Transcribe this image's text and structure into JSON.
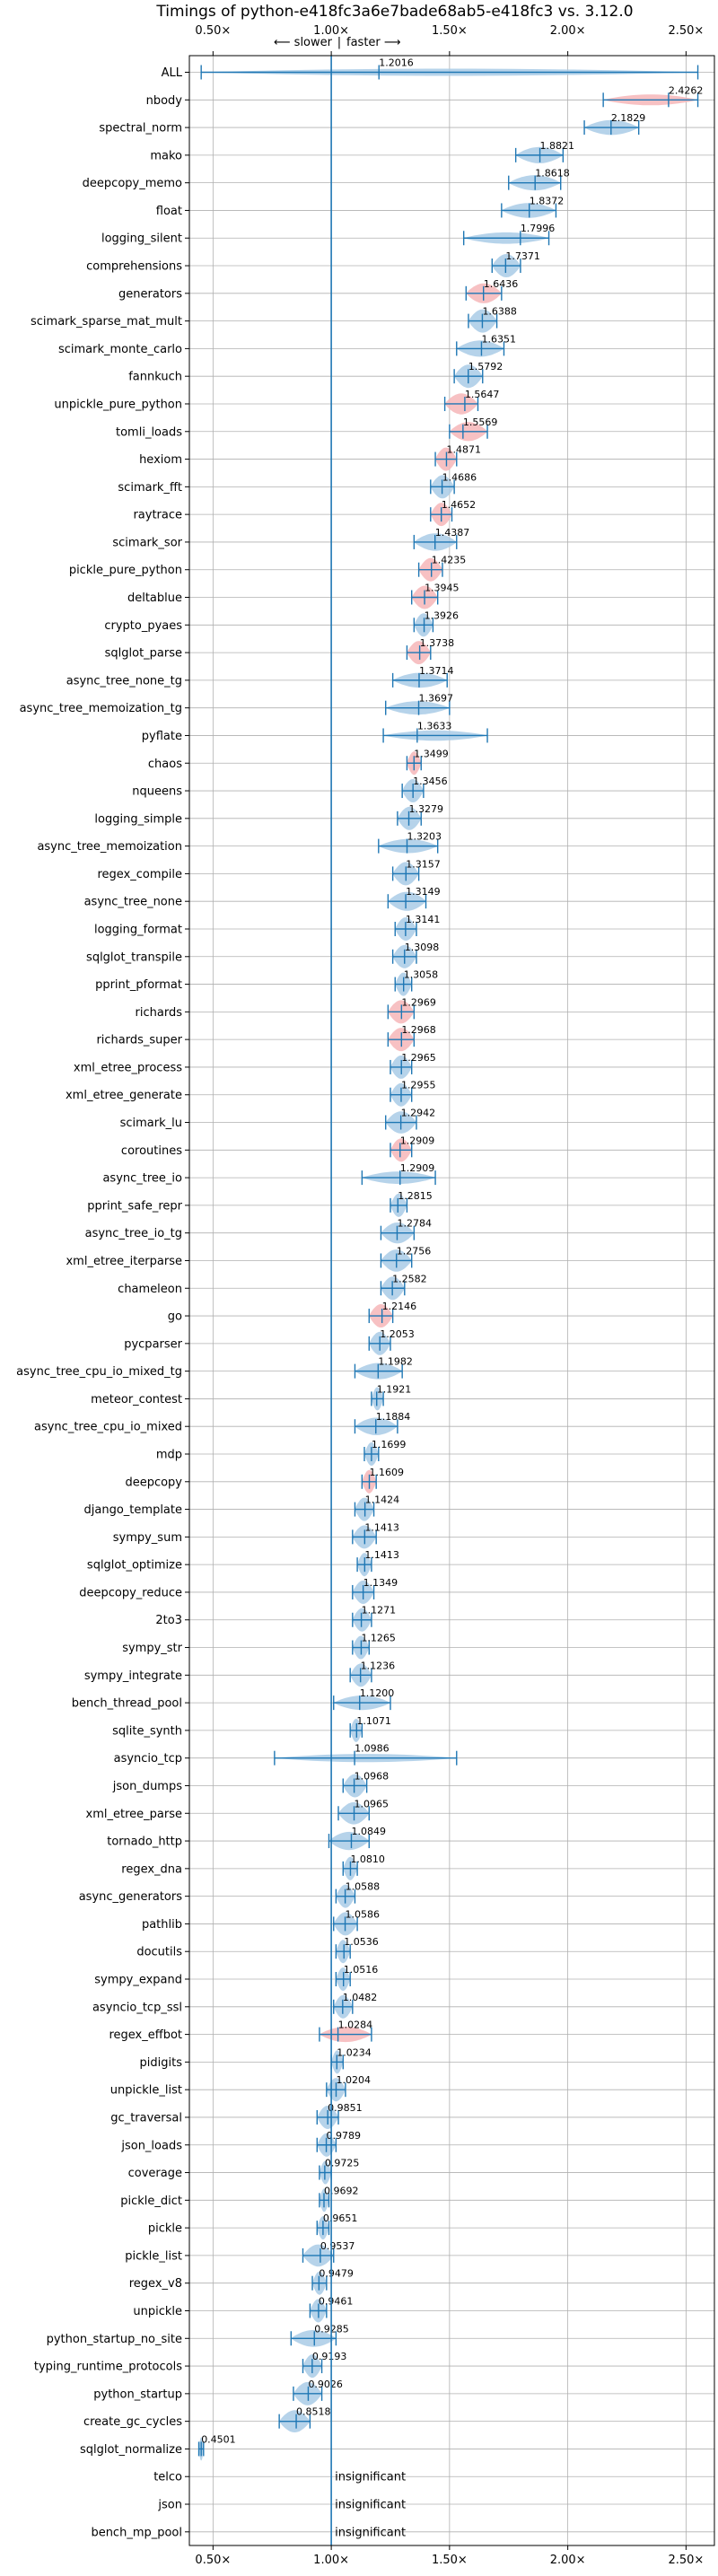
{
  "chart_data": {
    "type": "violin",
    "title": "Timings of python-e418fc3a6e7bade68ab5-e418fc3 vs. 3.12.0",
    "direction_labels": {
      "slower": "⟵ slower",
      "faster": "faster ⟶"
    },
    "x_ticks": [
      0.5,
      1.0,
      1.5,
      2.0,
      2.5
    ],
    "x_tick_labels": [
      "0.50×",
      "1.00×",
      "1.50×",
      "2.00×",
      "2.50×"
    ],
    "xlim": [
      0.4,
      2.62
    ],
    "grid": true,
    "reference_line": 1.0,
    "colors": {
      "faster": "#a9cbe6",
      "slower": "#f6b6b8",
      "error": "#1f77b4",
      "grid": "#b0b0b0"
    },
    "insignificant_label": "insignificant",
    "benchmarks": [
      {
        "name": "ALL",
        "value": 1.2016,
        "lo": 0.45,
        "hi": 2.55,
        "slower": false,
        "insignificant": false
      },
      {
        "name": "nbody",
        "value": 2.4262,
        "lo": 2.15,
        "hi": 2.55,
        "slower": true,
        "insignificant": false
      },
      {
        "name": "spectral_norm",
        "value": 2.1829,
        "lo": 2.07,
        "hi": 2.3,
        "slower": false,
        "insignificant": false
      },
      {
        "name": "mako",
        "value": 1.8821,
        "lo": 1.78,
        "hi": 1.98,
        "slower": false,
        "insignificant": false
      },
      {
        "name": "deepcopy_memo",
        "value": 1.8618,
        "lo": 1.75,
        "hi": 1.97,
        "slower": false,
        "insignificant": false
      },
      {
        "name": "float",
        "value": 1.8372,
        "lo": 1.72,
        "hi": 1.95,
        "slower": false,
        "insignificant": false
      },
      {
        "name": "logging_silent",
        "value": 1.7996,
        "lo": 1.56,
        "hi": 1.92,
        "slower": false,
        "insignificant": false
      },
      {
        "name": "comprehensions",
        "value": 1.7371,
        "lo": 1.68,
        "hi": 1.8,
        "slower": false,
        "insignificant": false
      },
      {
        "name": "generators",
        "value": 1.6436,
        "lo": 1.57,
        "hi": 1.72,
        "slower": true,
        "insignificant": false
      },
      {
        "name": "scimark_sparse_mat_mult",
        "value": 1.6388,
        "lo": 1.58,
        "hi": 1.7,
        "slower": false,
        "insignificant": false
      },
      {
        "name": "scimark_monte_carlo",
        "value": 1.6351,
        "lo": 1.53,
        "hi": 1.73,
        "slower": false,
        "insignificant": false
      },
      {
        "name": "fannkuch",
        "value": 1.5792,
        "lo": 1.52,
        "hi": 1.64,
        "slower": false,
        "insignificant": false
      },
      {
        "name": "unpickle_pure_python",
        "value": 1.5647,
        "lo": 1.48,
        "hi": 1.62,
        "slower": true,
        "insignificant": false
      },
      {
        "name": "tomli_loads",
        "value": 1.5569,
        "lo": 1.5,
        "hi": 1.66,
        "slower": true,
        "insignificant": false
      },
      {
        "name": "hexiom",
        "value": 1.4871,
        "lo": 1.44,
        "hi": 1.53,
        "slower": true,
        "insignificant": false
      },
      {
        "name": "scimark_fft",
        "value": 1.4686,
        "lo": 1.42,
        "hi": 1.52,
        "slower": false,
        "insignificant": false
      },
      {
        "name": "raytrace",
        "value": 1.4652,
        "lo": 1.42,
        "hi": 1.51,
        "slower": true,
        "insignificant": false
      },
      {
        "name": "scimark_sor",
        "value": 1.4387,
        "lo": 1.35,
        "hi": 1.53,
        "slower": false,
        "insignificant": false
      },
      {
        "name": "pickle_pure_python",
        "value": 1.4235,
        "lo": 1.37,
        "hi": 1.47,
        "slower": true,
        "insignificant": false
      },
      {
        "name": "deltablue",
        "value": 1.3945,
        "lo": 1.34,
        "hi": 1.45,
        "slower": true,
        "insignificant": false
      },
      {
        "name": "crypto_pyaes",
        "value": 1.3926,
        "lo": 1.35,
        "hi": 1.43,
        "slower": false,
        "insignificant": false
      },
      {
        "name": "sqlglot_parse",
        "value": 1.3738,
        "lo": 1.32,
        "hi": 1.42,
        "slower": true,
        "insignificant": false
      },
      {
        "name": "async_tree_none_tg",
        "value": 1.3714,
        "lo": 1.26,
        "hi": 1.49,
        "slower": false,
        "insignificant": false
      },
      {
        "name": "async_tree_memoization_tg",
        "value": 1.3697,
        "lo": 1.23,
        "hi": 1.5,
        "slower": false,
        "insignificant": false
      },
      {
        "name": "pyflate",
        "value": 1.3633,
        "lo": 1.22,
        "hi": 1.66,
        "slower": false,
        "insignificant": false
      },
      {
        "name": "chaos",
        "value": 1.3499,
        "lo": 1.32,
        "hi": 1.38,
        "slower": true,
        "insignificant": false
      },
      {
        "name": "nqueens",
        "value": 1.3456,
        "lo": 1.3,
        "hi": 1.39,
        "slower": false,
        "insignificant": false
      },
      {
        "name": "logging_simple",
        "value": 1.3279,
        "lo": 1.28,
        "hi": 1.38,
        "slower": false,
        "insignificant": false
      },
      {
        "name": "async_tree_memoization",
        "value": 1.3203,
        "lo": 1.2,
        "hi": 1.45,
        "slower": false,
        "insignificant": false
      },
      {
        "name": "regex_compile",
        "value": 1.3157,
        "lo": 1.26,
        "hi": 1.37,
        "slower": false,
        "insignificant": false
      },
      {
        "name": "async_tree_none",
        "value": 1.3149,
        "lo": 1.24,
        "hi": 1.4,
        "slower": false,
        "insignificant": false
      },
      {
        "name": "logging_format",
        "value": 1.3141,
        "lo": 1.27,
        "hi": 1.36,
        "slower": false,
        "insignificant": false
      },
      {
        "name": "sqlglot_transpile",
        "value": 1.3098,
        "lo": 1.26,
        "hi": 1.36,
        "slower": false,
        "insignificant": false
      },
      {
        "name": "pprint_pformat",
        "value": 1.3058,
        "lo": 1.27,
        "hi": 1.34,
        "slower": false,
        "insignificant": false
      },
      {
        "name": "richards",
        "value": 1.2969,
        "lo": 1.24,
        "hi": 1.35,
        "slower": true,
        "insignificant": false
      },
      {
        "name": "richards_super",
        "value": 1.2968,
        "lo": 1.24,
        "hi": 1.35,
        "slower": true,
        "insignificant": false
      },
      {
        "name": "xml_etree_process",
        "value": 1.2965,
        "lo": 1.25,
        "hi": 1.34,
        "slower": false,
        "insignificant": false
      },
      {
        "name": "xml_etree_generate",
        "value": 1.2955,
        "lo": 1.25,
        "hi": 1.34,
        "slower": false,
        "insignificant": false
      },
      {
        "name": "scimark_lu",
        "value": 1.2942,
        "lo": 1.23,
        "hi": 1.36,
        "slower": false,
        "insignificant": false
      },
      {
        "name": "coroutines",
        "value": 1.2909,
        "lo": 1.25,
        "hi": 1.34,
        "slower": true,
        "insignificant": false
      },
      {
        "name": "async_tree_io",
        "value": 1.2909,
        "lo": 1.13,
        "hi": 1.44,
        "slower": false,
        "insignificant": false
      },
      {
        "name": "pprint_safe_repr",
        "value": 1.2815,
        "lo": 1.25,
        "hi": 1.32,
        "slower": false,
        "insignificant": false
      },
      {
        "name": "async_tree_io_tg",
        "value": 1.2784,
        "lo": 1.21,
        "hi": 1.35,
        "slower": false,
        "insignificant": false
      },
      {
        "name": "xml_etree_iterparse",
        "value": 1.2756,
        "lo": 1.21,
        "hi": 1.34,
        "slower": false,
        "insignificant": false
      },
      {
        "name": "chameleon",
        "value": 1.2582,
        "lo": 1.21,
        "hi": 1.31,
        "slower": false,
        "insignificant": false
      },
      {
        "name": "go",
        "value": 1.2146,
        "lo": 1.16,
        "hi": 1.26,
        "slower": true,
        "insignificant": false
      },
      {
        "name": "pycparser",
        "value": 1.2053,
        "lo": 1.16,
        "hi": 1.25,
        "slower": false,
        "insignificant": false
      },
      {
        "name": "async_tree_cpu_io_mixed_tg",
        "value": 1.1982,
        "lo": 1.1,
        "hi": 1.3,
        "slower": false,
        "insignificant": false
      },
      {
        "name": "meteor_contest",
        "value": 1.1921,
        "lo": 1.17,
        "hi": 1.22,
        "slower": false,
        "insignificant": false
      },
      {
        "name": "async_tree_cpu_io_mixed",
        "value": 1.1884,
        "lo": 1.1,
        "hi": 1.28,
        "slower": false,
        "insignificant": false
      },
      {
        "name": "mdp",
        "value": 1.1699,
        "lo": 1.14,
        "hi": 1.2,
        "slower": false,
        "insignificant": false
      },
      {
        "name": "deepcopy",
        "value": 1.1609,
        "lo": 1.13,
        "hi": 1.19,
        "slower": true,
        "insignificant": false
      },
      {
        "name": "django_template",
        "value": 1.1424,
        "lo": 1.1,
        "hi": 1.18,
        "slower": false,
        "insignificant": false
      },
      {
        "name": "sympy_sum",
        "value": 1.1413,
        "lo": 1.09,
        "hi": 1.19,
        "slower": false,
        "insignificant": false
      },
      {
        "name": "sqlglot_optimize",
        "value": 1.1413,
        "lo": 1.11,
        "hi": 1.17,
        "slower": false,
        "insignificant": false
      },
      {
        "name": "deepcopy_reduce",
        "value": 1.1349,
        "lo": 1.09,
        "hi": 1.18,
        "slower": false,
        "insignificant": false
      },
      {
        "name": "2to3",
        "value": 1.1271,
        "lo": 1.09,
        "hi": 1.17,
        "slower": false,
        "insignificant": false
      },
      {
        "name": "sympy_str",
        "value": 1.1265,
        "lo": 1.09,
        "hi": 1.16,
        "slower": false,
        "insignificant": false
      },
      {
        "name": "sympy_integrate",
        "value": 1.1236,
        "lo": 1.08,
        "hi": 1.17,
        "slower": false,
        "insignificant": false
      },
      {
        "name": "bench_thread_pool",
        "value": 1.12,
        "lo": 1.01,
        "hi": 1.25,
        "slower": false,
        "insignificant": false
      },
      {
        "name": "sqlite_synth",
        "value": 1.1071,
        "lo": 1.08,
        "hi": 1.13,
        "slower": false,
        "insignificant": false
      },
      {
        "name": "asyncio_tcp",
        "value": 1.0986,
        "lo": 0.76,
        "hi": 1.53,
        "slower": false,
        "insignificant": false
      },
      {
        "name": "json_dumps",
        "value": 1.0968,
        "lo": 1.05,
        "hi": 1.15,
        "slower": false,
        "insignificant": false
      },
      {
        "name": "xml_etree_parse",
        "value": 1.0965,
        "lo": 1.03,
        "hi": 1.16,
        "slower": false,
        "insignificant": false
      },
      {
        "name": "tornado_http",
        "value": 1.0849,
        "lo": 0.99,
        "hi": 1.16,
        "slower": false,
        "insignificant": false
      },
      {
        "name": "regex_dna",
        "value": 1.081,
        "lo": 1.05,
        "hi": 1.11,
        "slower": false,
        "insignificant": false
      },
      {
        "name": "async_generators",
        "value": 1.0588,
        "lo": 1.02,
        "hi": 1.1,
        "slower": false,
        "insignificant": false
      },
      {
        "name": "pathlib",
        "value": 1.0586,
        "lo": 1.01,
        "hi": 1.11,
        "slower": false,
        "insignificant": false
      },
      {
        "name": "docutils",
        "value": 1.0536,
        "lo": 1.02,
        "hi": 1.08,
        "slower": false,
        "insignificant": false
      },
      {
        "name": "sympy_expand",
        "value": 1.0516,
        "lo": 1.02,
        "hi": 1.08,
        "slower": false,
        "insignificant": false
      },
      {
        "name": "asyncio_tcp_ssl",
        "value": 1.0482,
        "lo": 1.01,
        "hi": 1.09,
        "slower": false,
        "insignificant": false
      },
      {
        "name": "regex_effbot",
        "value": 1.0284,
        "lo": 0.95,
        "hi": 1.17,
        "slower": true,
        "insignificant": false
      },
      {
        "name": "pidigits",
        "value": 1.0234,
        "lo": 1.0,
        "hi": 1.05,
        "slower": false,
        "insignificant": false
      },
      {
        "name": "unpickle_list",
        "value": 1.0204,
        "lo": 0.98,
        "hi": 1.06,
        "slower": false,
        "insignificant": false
      },
      {
        "name": "gc_traversal",
        "value": 0.9851,
        "lo": 0.94,
        "hi": 1.03,
        "slower": false,
        "insignificant": false
      },
      {
        "name": "json_loads",
        "value": 0.9789,
        "lo": 0.94,
        "hi": 1.02,
        "slower": false,
        "insignificant": false
      },
      {
        "name": "coverage",
        "value": 0.9725,
        "lo": 0.95,
        "hi": 1.0,
        "slower": false,
        "insignificant": false
      },
      {
        "name": "pickle_dict",
        "value": 0.9692,
        "lo": 0.95,
        "hi": 0.99,
        "slower": false,
        "insignificant": false
      },
      {
        "name": "pickle",
        "value": 0.9651,
        "lo": 0.94,
        "hi": 0.99,
        "slower": false,
        "insignificant": false
      },
      {
        "name": "pickle_list",
        "value": 0.9537,
        "lo": 0.88,
        "hi": 1.01,
        "slower": false,
        "insignificant": false
      },
      {
        "name": "regex_v8",
        "value": 0.9479,
        "lo": 0.92,
        "hi": 0.98,
        "slower": false,
        "insignificant": false
      },
      {
        "name": "unpickle",
        "value": 0.9461,
        "lo": 0.91,
        "hi": 0.98,
        "slower": false,
        "insignificant": false
      },
      {
        "name": "python_startup_no_site",
        "value": 0.9285,
        "lo": 0.83,
        "hi": 1.02,
        "slower": false,
        "insignificant": false
      },
      {
        "name": "typing_runtime_protocols",
        "value": 0.9193,
        "lo": 0.88,
        "hi": 0.96,
        "slower": false,
        "insignificant": false
      },
      {
        "name": "python_startup",
        "value": 0.9026,
        "lo": 0.84,
        "hi": 0.96,
        "slower": false,
        "insignificant": false
      },
      {
        "name": "create_gc_cycles",
        "value": 0.8518,
        "lo": 0.78,
        "hi": 0.91,
        "slower": false,
        "insignificant": false
      },
      {
        "name": "sqlglot_normalize",
        "value": 0.4501,
        "lo": 0.44,
        "hi": 0.46,
        "slower": false,
        "insignificant": false
      },
      {
        "name": "telco",
        "value": null,
        "lo": null,
        "hi": null,
        "slower": false,
        "insignificant": true
      },
      {
        "name": "json",
        "value": null,
        "lo": null,
        "hi": null,
        "slower": false,
        "insignificant": true
      },
      {
        "name": "bench_mp_pool",
        "value": null,
        "lo": null,
        "hi": null,
        "slower": false,
        "insignificant": true
      }
    ]
  }
}
